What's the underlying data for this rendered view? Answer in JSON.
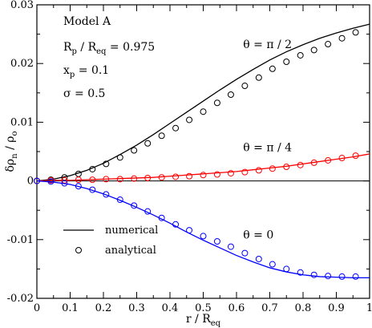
{
  "chart_data": {
    "type": "line",
    "title": "",
    "xlabel": {
      "main": "r / R",
      "sub": "eq"
    },
    "ylabel": {
      "main": "δρ",
      "sub1": "n",
      "mid": " / ρ",
      "sub2": "o"
    },
    "xlim": [
      0,
      1
    ],
    "ylim": [
      -0.02,
      0.03
    ],
    "xticks": [
      0,
      0.1,
      0.2,
      0.3,
      0.4,
      0.5,
      0.6,
      0.7,
      0.8,
      0.9,
      1
    ],
    "xtick_labels": [
      "0",
      "0.1",
      "0.2",
      "0.3",
      "0.4",
      "0.5",
      "0.6",
      "0.7",
      "0.8",
      "0.9",
      "1"
    ],
    "yticks": [
      -0.02,
      -0.01,
      0,
      0.01,
      0.02,
      0.03
    ],
    "ytick_labels": [
      "-0.02",
      "-0.01",
      "0",
      "0.01",
      "0.02",
      "0.03"
    ],
    "grid": false,
    "zero_line": true,
    "legend": {
      "position": "lower-left",
      "entries": [
        {
          "label": "numerical",
          "marker": "line",
          "color": "#000000"
        },
        {
          "label": "analytical",
          "marker": "circle",
          "color": "#000000"
        }
      ]
    },
    "annotations": {
      "model": "Model A",
      "params": [
        {
          "lhs": "R",
          "lhs_sub": "p",
          "mid": " / R",
          "mid_sub": "eq",
          "rhs": " = 0.975"
        },
        {
          "lhs": "x",
          "lhs_sub": "p",
          "mid": "",
          "mid_sub": "",
          "rhs": " = 0.1"
        },
        {
          "lhs": "σ",
          "lhs_sub": "",
          "mid": "",
          "mid_sub": "",
          "rhs": " = 0.5"
        }
      ],
      "series_labels": [
        {
          "text": "θ = π / 2",
          "x": 0.62,
          "y": 0.0226
        },
        {
          "text": "θ = π / 4",
          "x": 0.62,
          "y": 0.0051
        },
        {
          "text": "θ = 0",
          "x": 0.62,
          "y": -0.0098
        }
      ]
    },
    "series": [
      {
        "name": "θ = π / 2",
        "color": "#000000",
        "numerical": {
          "x": [
            0,
            0.05,
            0.1,
            0.15,
            0.2,
            0.25,
            0.3,
            0.35,
            0.4,
            0.45,
            0.5,
            0.55,
            0.6,
            0.65,
            0.7,
            0.75,
            0.8,
            0.85,
            0.9,
            0.95,
            1.0
          ],
          "y": [
            0,
            0.0003,
            0.0009,
            0.0018,
            0.003,
            0.0045,
            0.0061,
            0.0079,
            0.0098,
            0.0117,
            0.0136,
            0.0155,
            0.0173,
            0.019,
            0.0206,
            0.022,
            0.0232,
            0.0243,
            0.0252,
            0.026,
            0.0267
          ]
        },
        "analytical": {
          "x": [
            0,
            0.042,
            0.083,
            0.125,
            0.167,
            0.208,
            0.25,
            0.292,
            0.333,
            0.375,
            0.417,
            0.458,
            0.5,
            0.542,
            0.583,
            0.625,
            0.667,
            0.708,
            0.75,
            0.792,
            0.833,
            0.875,
            0.917,
            0.958
          ],
          "y": [
            0,
            0.0002,
            0.0006,
            0.0012,
            0.002,
            0.0029,
            0.004,
            0.0052,
            0.0064,
            0.0077,
            0.009,
            0.0104,
            0.0118,
            0.0133,
            0.0147,
            0.0162,
            0.0176,
            0.0191,
            0.0203,
            0.0214,
            0.0223,
            0.0233,
            0.0243,
            0.0253
          ]
        }
      },
      {
        "name": "θ = π / 4",
        "color": "#ff0000",
        "numerical": {
          "x": [
            0,
            0.05,
            0.1,
            0.15,
            0.2,
            0.25,
            0.3,
            0.35,
            0.4,
            0.45,
            0.5,
            0.55,
            0.6,
            0.65,
            0.7,
            0.75,
            0.8,
            0.85,
            0.9,
            0.95,
            1.0
          ],
          "y": [
            0,
            0.0001,
            0.0001,
            0.0002,
            0.0003,
            0.0004,
            0.0005,
            0.0006,
            0.0008,
            0.001,
            0.0012,
            0.0014,
            0.0016,
            0.0019,
            0.0022,
            0.0025,
            0.0029,
            0.0033,
            0.0037,
            0.0041,
            0.0046
          ]
        },
        "analytical": {
          "x": [
            0,
            0.042,
            0.083,
            0.125,
            0.167,
            0.208,
            0.25,
            0.292,
            0.333,
            0.375,
            0.417,
            0.458,
            0.5,
            0.542,
            0.583,
            0.625,
            0.667,
            0.708,
            0.75,
            0.792,
            0.833,
            0.875,
            0.917,
            0.958
          ],
          "y": [
            0,
            0.0001,
            0.0001,
            0.0002,
            0.0002,
            0.0003,
            0.0003,
            0.0004,
            0.0005,
            0.0006,
            0.0007,
            0.0008,
            0.001,
            0.0011,
            0.0013,
            0.0015,
            0.0018,
            0.0021,
            0.0024,
            0.0027,
            0.0031,
            0.0035,
            0.0039,
            0.0043
          ]
        }
      },
      {
        "name": "θ = 0",
        "color": "#0000ff",
        "numerical": {
          "x": [
            0,
            0.05,
            0.1,
            0.15,
            0.2,
            0.25,
            0.3,
            0.35,
            0.4,
            0.45,
            0.5,
            0.55,
            0.6,
            0.65,
            0.7,
            0.75,
            0.8,
            0.85,
            0.9,
            0.95,
            1.0
          ],
          "y": [
            0,
            -0.0002,
            -0.0006,
            -0.0013,
            -0.0022,
            -0.0033,
            -0.0045,
            -0.0058,
            -0.0072,
            -0.0087,
            -0.0101,
            -0.0114,
            -0.0127,
            -0.0138,
            -0.0148,
            -0.0155,
            -0.016,
            -0.0163,
            -0.0164,
            -0.0165,
            -0.0165
          ]
        },
        "analytical": {
          "x": [
            0,
            0.042,
            0.083,
            0.125,
            0.167,
            0.208,
            0.25,
            0.292,
            0.333,
            0.375,
            0.417,
            0.458,
            0.5,
            0.542,
            0.583,
            0.625,
            0.667,
            0.708,
            0.75,
            0.792,
            0.833,
            0.875,
            0.917,
            0.958
          ],
          "y": [
            0,
            -0.0001,
            -0.0004,
            -0.0009,
            -0.0015,
            -0.0023,
            -0.0032,
            -0.0042,
            -0.0052,
            -0.0063,
            -0.0074,
            -0.0084,
            -0.0094,
            -0.0103,
            -0.0112,
            -0.0123,
            -0.0133,
            -0.0142,
            -0.015,
            -0.0156,
            -0.016,
            -0.0162,
            -0.0163,
            -0.0163
          ]
        }
      }
    ]
  }
}
